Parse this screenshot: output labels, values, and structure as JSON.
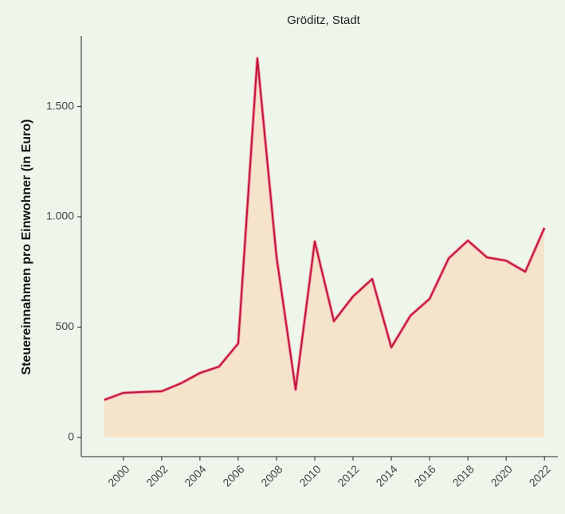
{
  "chart_data": {
    "type": "area",
    "title": "Gröditz, Stadt",
    "y_label": "Steuereinnahmen pro Einwohner (in Euro)",
    "x": [
      1999,
      2000,
      2001,
      2002,
      2003,
      2004,
      2005,
      2006,
      2007,
      2008,
      2009,
      2010,
      2011,
      2012,
      2013,
      2014,
      2015,
      2016,
      2017,
      2018,
      2019,
      2020,
      2021,
      2022
    ],
    "values": [
      170,
      202,
      206,
      209,
      245,
      292,
      321,
      426,
      1718,
      819,
      217,
      888,
      527,
      639,
      718,
      408,
      552,
      628,
      812,
      892,
      816,
      801,
      751,
      950
    ],
    "color": "#c0143c",
    "fill": "#f6e3cc",
    "xlim": [
      1997.8,
      2022.7
    ],
    "xticks": [
      2000,
      2002,
      2004,
      2006,
      2008,
      2010,
      2012,
      2014,
      2016,
      2018,
      2020,
      2022
    ],
    "ylim": [
      -87,
      1820
    ],
    "yticks": [
      0,
      500,
      {
        "value": 1000,
        "label": "1.000"
      },
      {
        "value": 1500,
        "label": "1.500"
      }
    ]
  }
}
